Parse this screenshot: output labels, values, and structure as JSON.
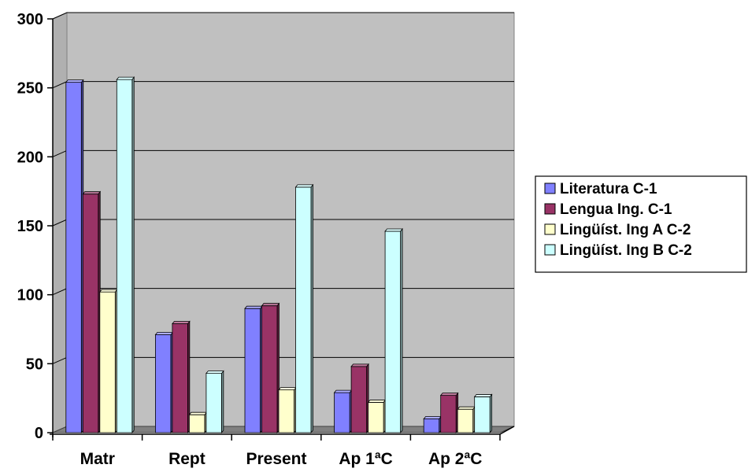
{
  "chart_data": {
    "type": "bar",
    "title": "",
    "xlabel": "",
    "ylabel": "",
    "categories": [
      "Matr",
      "Rept",
      "Present",
      "Ap 1ªC",
      "Ap 2ªC"
    ],
    "ylim": [
      0,
      300
    ],
    "yticks": [
      0,
      50,
      100,
      150,
      200,
      250,
      300
    ],
    "grid": true,
    "legend_position": "right",
    "series": [
      {
        "name": "Literatura C-1",
        "color": "#8080ff",
        "values": [
          254,
          71,
          90,
          29,
          10
        ]
      },
      {
        "name": "Lengua Ing. C-1",
        "color": "#993366",
        "values": [
          173,
          79,
          92,
          48,
          27
        ]
      },
      {
        "name": "Lingüíst. Ing A C-2",
        "color": "#ffffcc",
        "values": [
          102,
          13,
          31,
          22,
          17
        ]
      },
      {
        "name": "Lingüíst. Ing B C-2",
        "color": "#ccffff",
        "values": [
          256,
          43,
          178,
          146,
          26
        ]
      }
    ]
  }
}
